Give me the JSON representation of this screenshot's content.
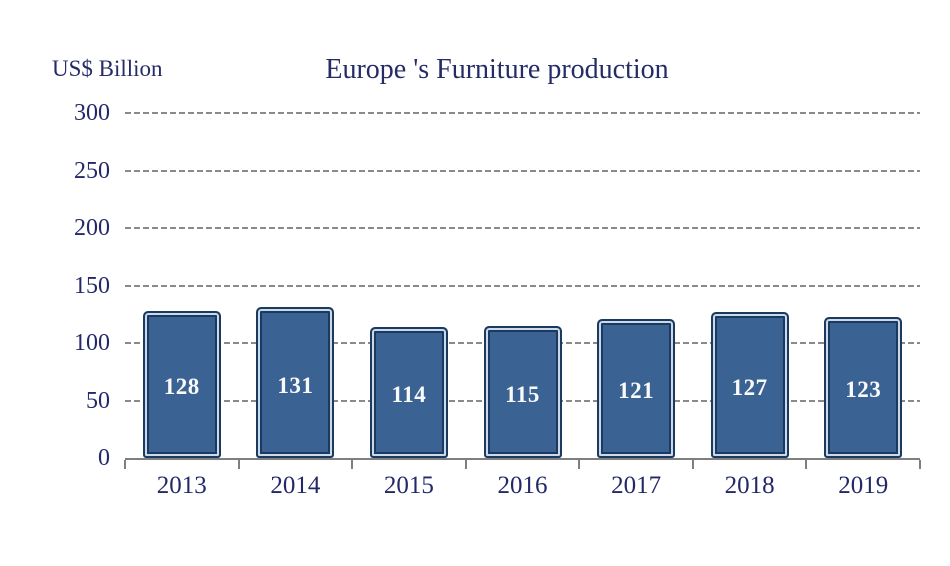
{
  "header": {
    "title": "Europe 's Furniture production",
    "y_axis_unit": "US$ Billion"
  },
  "colors": {
    "title_text": "#242b66",
    "axis_text": "#232968",
    "bar_fill": "#3a6394",
    "bar_border": "#1b3a5f",
    "bar_inner_stroke": "#cbd9ea",
    "bar_value_text": "#fafafa",
    "gridline": "#8a8a8a",
    "axis_line": "#7f7f7f",
    "background": "#ffffff"
  },
  "chart_data": {
    "type": "bar",
    "title": "Europe 's Furniture production",
    "xlabel": "",
    "ylabel": "US$ Billion",
    "categories": [
      "2013",
      "2014",
      "2015",
      "2016",
      "2017",
      "2018",
      "2019"
    ],
    "values": [
      128,
      131,
      114,
      115,
      121,
      127,
      123
    ],
    "ylim": [
      0,
      300
    ],
    "ytick_step": 50,
    "ytick_labels": [
      "0",
      "50",
      "100",
      "150",
      "200",
      "250",
      "300"
    ],
    "grid": "horizontal-dashed",
    "legend": "none",
    "bar_value_labels_shown": true
  }
}
